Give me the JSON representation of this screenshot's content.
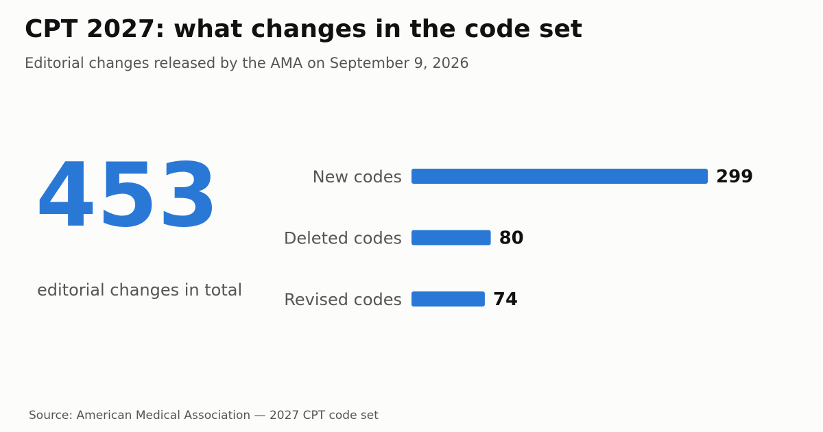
{
  "header": {
    "title": "CPT 2027: what changes in the code set",
    "subtitle": "Editorial changes released by the AMA on September 9, 2026"
  },
  "summary": {
    "total": "453",
    "caption": "editorial changes in total"
  },
  "footer": {
    "source": "Source: American Medical Association — 2027 CPT code set"
  },
  "colors": {
    "bar": "#2a78d6",
    "accent": "#2a78d6"
  },
  "chart_data": {
    "type": "bar",
    "orientation": "horizontal",
    "categories": [
      "New codes",
      "Deleted codes",
      "Revised codes"
    ],
    "values": [
      299,
      80,
      74
    ],
    "title": "",
    "xlabel": "",
    "ylabel": "",
    "grid": false,
    "legend": "none"
  }
}
